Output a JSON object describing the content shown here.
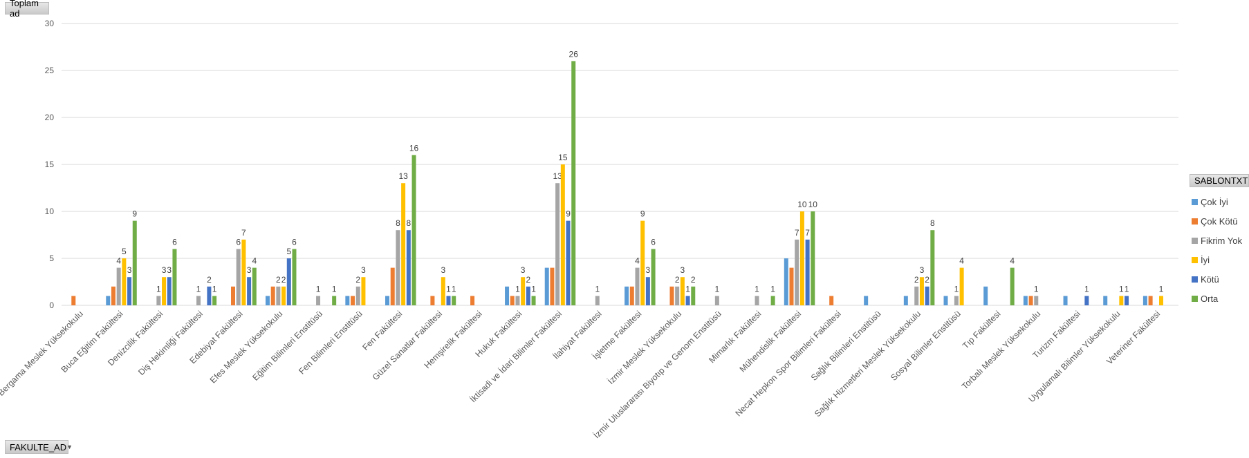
{
  "pivot_fields": {
    "values": "Toplam ad",
    "axis": "FAKULTE_AD",
    "legend": "SABLONTXT"
  },
  "chart_data": {
    "type": "bar",
    "title": "",
    "xlabel": "",
    "ylabel": "",
    "ylim": [
      0,
      30
    ],
    "yticks": [
      "0",
      "5",
      "10",
      "15",
      "20",
      "25",
      "30"
    ],
    "grid": true,
    "legend_position": "right",
    "categories": [
      "Bergama Meslek Yüksekokulu",
      "Buca Eğitim Fakültesi",
      "Denizcilik Fakültesi",
      "Diş Hekimliği Fakültesi",
      "Edebiyat Fakültesi",
      "Efes Meslek Yüksekokulu",
      "Eğitim Bilimleri Enstitüsü",
      "Fen Bilimleri Enstitüsü",
      "Fen Fakültesi",
      "Güzel Sanatlar Fakültesi",
      "Hemşirelik Fakültesi",
      "Hukuk Fakültesi",
      "İktisadi ve İdari Bilimler Fakültesi",
      "İlahiyat Fakültesi",
      "İşletme Fakültesi",
      "İzmir Meslek Yüksekokulu",
      "İzmir Uluslararası Biyotıp ve Genom Enstitüsü",
      "Mimarlık Fakültesi",
      "Mühendislik Fakültesi",
      "Necat Hepkon Spor Bilimleri Fakültesi",
      "Sağlık Bilimleri Enstitüsü",
      "Sağlık Hizmetleri Meslek Yüksekokulu",
      "Sosyal Bilimler Enstitüsü",
      "Tıp Fakültesi",
      "Torbalı Meslek Yüksekokulu",
      "Turizm Fakültesi",
      "Uygulamalı Bilimler Yüksekokulu",
      "Veteriner Fakültesi"
    ],
    "series": [
      {
        "name": "Çok İyi",
        "color": "#5b9bd5",
        "data_labels": false,
        "values": [
          null,
          1,
          null,
          null,
          null,
          1,
          null,
          1,
          1,
          null,
          null,
          2,
          4,
          null,
          2,
          null,
          null,
          null,
          5,
          null,
          1,
          1,
          1,
          2,
          1,
          1,
          1,
          1
        ]
      },
      {
        "name": "Çok Kötü",
        "color": "#ed7d31",
        "data_labels": false,
        "values": [
          1,
          2,
          null,
          null,
          2,
          2,
          null,
          1,
          4,
          1,
          1,
          1,
          4,
          null,
          2,
          2,
          null,
          null,
          4,
          1,
          null,
          null,
          null,
          null,
          1,
          null,
          null,
          1
        ]
      },
      {
        "name": "Fikrim Yok",
        "color": "#a5a5a5",
        "data_labels": true,
        "values": [
          null,
          4,
          1,
          1,
          6,
          2,
          1,
          2,
          8,
          null,
          null,
          1,
          13,
          1,
          4,
          2,
          1,
          1,
          7,
          null,
          null,
          2,
          1,
          null,
          1,
          null,
          null,
          null
        ]
      },
      {
        "name": "İyi",
        "color": "#ffc000",
        "data_labels": true,
        "values": [
          null,
          5,
          3,
          null,
          7,
          2,
          null,
          3,
          13,
          3,
          null,
          3,
          15,
          null,
          9,
          3,
          null,
          null,
          10,
          null,
          null,
          3,
          4,
          null,
          null,
          null,
          1,
          1
        ]
      },
      {
        "name": "Kötü",
        "color": "#4472c4",
        "data_labels": true,
        "values": [
          null,
          3,
          3,
          2,
          3,
          5,
          null,
          null,
          8,
          1,
          null,
          2,
          9,
          null,
          3,
          1,
          null,
          null,
          7,
          null,
          null,
          2,
          null,
          null,
          null,
          1,
          1,
          null
        ]
      },
      {
        "name": "Orta",
        "color": "#70ad47",
        "data_labels": true,
        "values": [
          null,
          9,
          6,
          1,
          4,
          6,
          1,
          null,
          16,
          1,
          null,
          1,
          26,
          null,
          6,
          2,
          null,
          1,
          10,
          null,
          null,
          8,
          null,
          4,
          null,
          null,
          null,
          null
        ]
      }
    ]
  }
}
